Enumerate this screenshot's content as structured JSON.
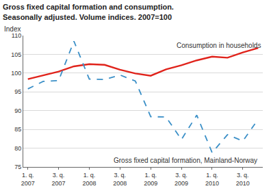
{
  "chart_data": {
    "type": "line",
    "title": "Gross fixed capital formation and consumption. Seasonally adjusted. Volume indices. 2007=100",
    "y_label": "Index",
    "categories": [
      "1. q. 2007",
      null,
      "3. q. 2007",
      null,
      "1. q. 2008",
      null,
      "3. q. 2008",
      null,
      "1. q. 2009",
      null,
      "3. q. 2009",
      null,
      "1. q. 2010",
      null,
      "3. q. 2010",
      null
    ],
    "series": [
      {
        "name": "Consumption in households",
        "color": "#e0231b",
        "line_style": "solid",
        "values": [
          98.4,
          99.4,
          100.4,
          101.8,
          102.4,
          102.2,
          100.9,
          99.9,
          99.3,
          101.0,
          102.1,
          103.4,
          104.4,
          104.1,
          105.5,
          106.7
        ]
      },
      {
        "name": "Gross fixed capital formation, Mainland-Norway",
        "color": "#3a8fc7",
        "line_style": "dashed",
        "values": [
          95.8,
          97.8,
          98.0,
          108.5,
          98.4,
          98.3,
          99.5,
          97.9,
          88.4,
          88.3,
          82.3,
          88.8,
          78.8,
          83.6,
          81.9,
          87.7
        ]
      }
    ],
    "ylim": [
      75,
      110
    ],
    "yticks": [
      75,
      80,
      85,
      90,
      95,
      100,
      105,
      110
    ],
    "grid": true
  }
}
